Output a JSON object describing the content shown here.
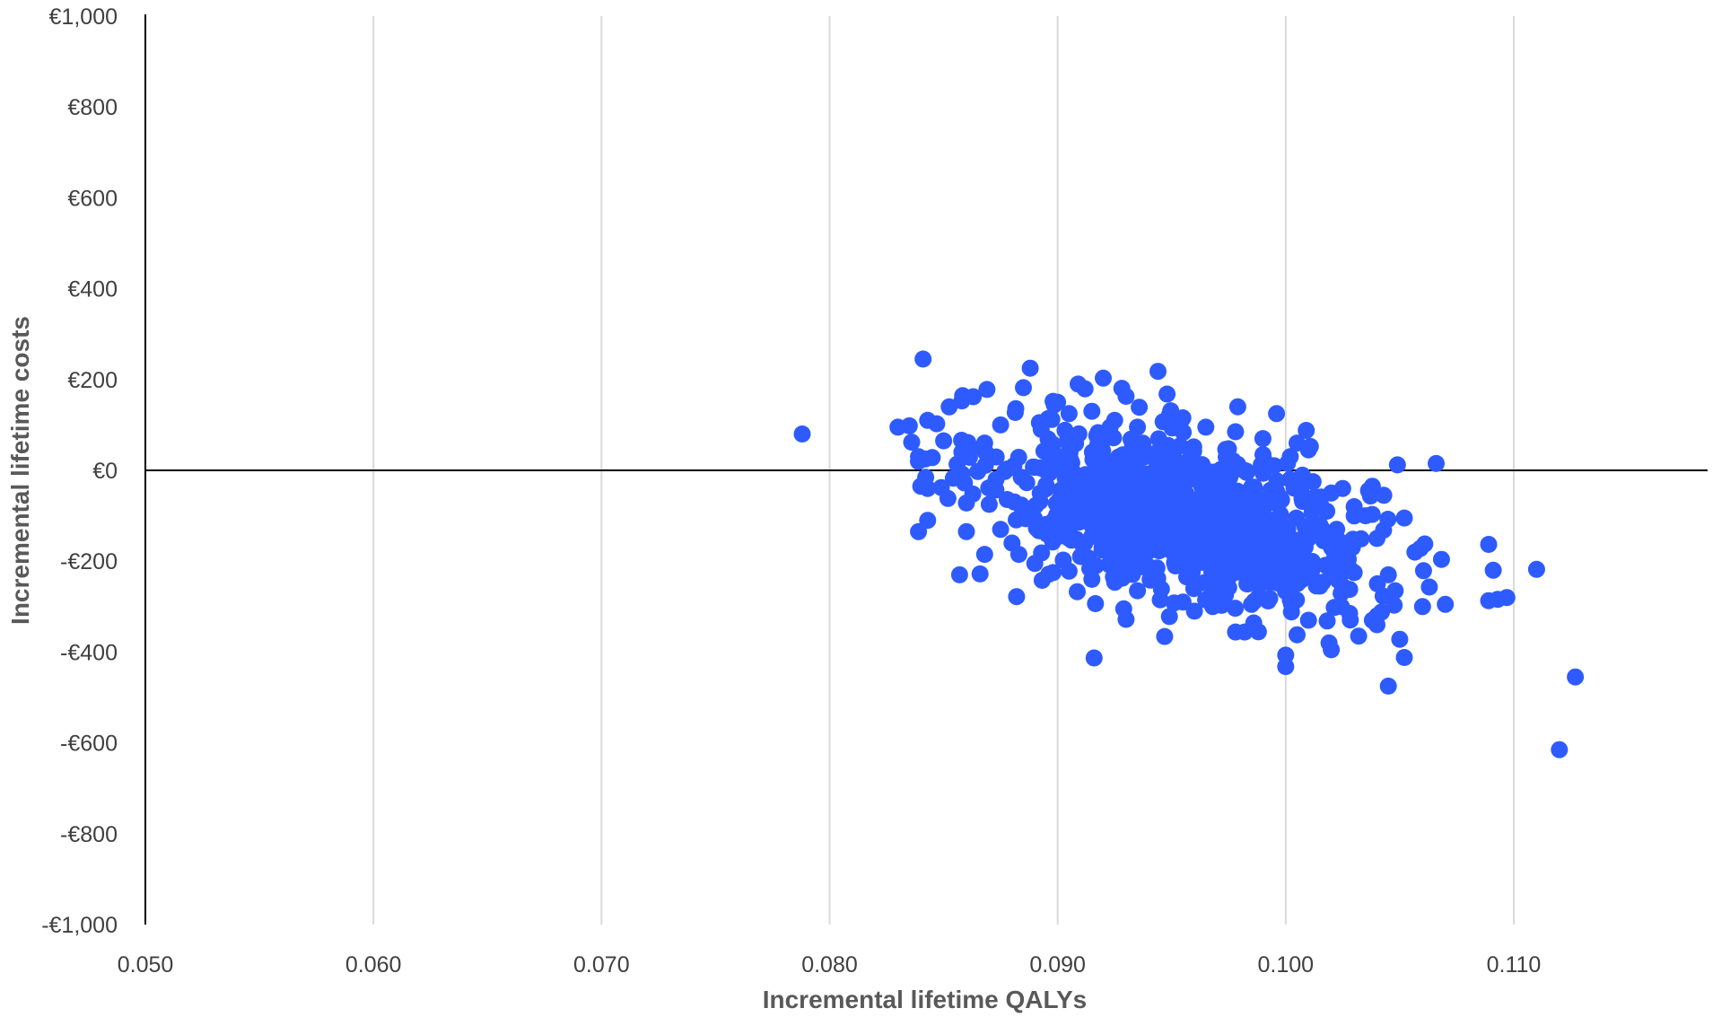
{
  "chart_data": {
    "type": "scatter",
    "xlabel": "Incremental  lifetime QALYs",
    "ylabel": "Incremental lifetime costs",
    "xlim": [
      0.05,
      0.1185
    ],
    "ylim": [
      -1000,
      1000
    ],
    "x_ticks": [
      0.05,
      0.06,
      0.07,
      0.08,
      0.09,
      0.1,
      0.11
    ],
    "x_tick_labels": [
      "0.050",
      "0.060",
      "0.070",
      "0.080",
      "0.090",
      "0.100",
      "0.110"
    ],
    "y_ticks": [
      1000,
      800,
      600,
      400,
      200,
      0,
      -200,
      -400,
      -600,
      -800,
      -1000
    ],
    "y_tick_labels": [
      "€1,000",
      "€800",
      "€600",
      "€400",
      "€200",
      "€0",
      "-€200",
      "-€400",
      "-€600",
      "-€800",
      "-€1,000"
    ],
    "grid": {
      "vertical": true,
      "horizontal": false
    },
    "legend": "none",
    "colors": {
      "points": "#2e5bff",
      "gridlines": "#d9d9d9",
      "axes": "#000000",
      "tick_text": "#404040",
      "axis_title": "#595959"
    },
    "cloud_summary": {
      "center": [
        0.0955,
        -100
      ],
      "sd": [
        0.0047,
        110
      ],
      "correlation": -0.45,
      "n_points": 1000
    },
    "points": [
      [
        0.0788,
        80
      ],
      [
        0.0841,
        245
      ],
      [
        0.0888,
        225
      ],
      [
        0.0944,
        218
      ],
      [
        0.092,
        203
      ],
      [
        0.0909,
        190
      ],
      [
        0.0948,
        168
      ],
      [
        0.093,
        163
      ],
      [
        0.0898,
        152
      ],
      [
        0.09,
        150
      ],
      [
        0.0869,
        178
      ],
      [
        0.0858,
        153
      ],
      [
        0.0885,
        182
      ],
      [
        0.0863,
        162
      ],
      [
        0.0979,
        140
      ],
      [
        0.0996,
        125
      ],
      [
        0.1009,
        88
      ],
      [
        0.083,
        95
      ],
      [
        0.0835,
        98
      ],
      [
        0.0843,
        110
      ],
      [
        0.0836,
        62
      ],
      [
        0.0839,
        30
      ],
      [
        0.0842,
        25
      ],
      [
        0.0845,
        28
      ],
      [
        0.085,
        65
      ],
      [
        0.084,
        -35
      ],
      [
        0.0843,
        -40
      ],
      [
        0.0849,
        -38
      ],
      [
        0.086,
        -72
      ],
      [
        0.0843,
        -110
      ],
      [
        0.0839,
        -135
      ],
      [
        0.086,
        -135
      ],
      [
        0.0857,
        -230
      ],
      [
        0.0866,
        -228
      ],
      [
        0.0868,
        -185
      ],
      [
        0.0882,
        -278
      ],
      [
        0.0916,
        -413
      ],
      [
        0.0929,
        -305
      ],
      [
        0.093,
        -328
      ],
      [
        0.0949,
        -322
      ],
      [
        0.0978,
        -356
      ],
      [
        0.0982,
        -356
      ],
      [
        0.0986,
        -336
      ],
      [
        0.1,
        -407
      ],
      [
        0.1,
        -432
      ],
      [
        0.1005,
        -362
      ],
      [
        0.1019,
        -380
      ],
      [
        0.102,
        -395
      ],
      [
        0.1045,
        -475
      ],
      [
        0.105,
        -372
      ],
      [
        0.1052,
        -412
      ],
      [
        0.104,
        -340
      ],
      [
        0.106,
        -300
      ],
      [
        0.107,
        -295
      ],
      [
        0.1063,
        -257
      ],
      [
        0.1061,
        -162
      ],
      [
        0.1059,
        -172
      ],
      [
        0.1049,
        12
      ],
      [
        0.1066,
        15
      ],
      [
        0.1089,
        -163
      ],
      [
        0.1091,
        -220
      ],
      [
        0.1089,
        -287
      ],
      [
        0.1093,
        -284
      ],
      [
        0.1097,
        -280
      ],
      [
        0.111,
        -218
      ],
      [
        0.1127,
        -455
      ],
      [
        0.112,
        -615
      ],
      [
        0.1052,
        -105
      ],
      [
        0.1043,
        -55
      ],
      [
        0.1038,
        -35
      ],
      [
        0.1025,
        -40
      ],
      [
        0.103,
        -80
      ],
      [
        0.1035,
        -100
      ],
      [
        0.104,
        -150
      ],
      [
        0.1045,
        -230
      ],
      [
        0.1048,
        -265
      ],
      [
        0.103,
        -225
      ],
      [
        0.1025,
        -255
      ],
      [
        0.1015,
        -255
      ],
      [
        0.101,
        -330
      ],
      [
        0.1028,
        -315
      ],
      [
        0.1032,
        -365
      ],
      [
        0.1038,
        -330
      ],
      [
        0.1042,
        -312
      ],
      [
        0.1002,
        -285
      ],
      [
        0.0993,
        -282
      ],
      [
        0.0985,
        -295
      ],
      [
        0.0975,
        -258
      ],
      [
        0.0968,
        -300
      ],
      [
        0.096,
        -310
      ],
      [
        0.0955,
        -290
      ],
      [
        0.0945,
        -285
      ],
      [
        0.0935,
        -265
      ],
      [
        0.0925,
        -245
      ],
      [
        0.0915,
        -240
      ],
      [
        0.0905,
        -222
      ],
      [
        0.0898,
        -225
      ],
      [
        0.089,
        -205
      ],
      [
        0.0883,
        -185
      ],
      [
        0.088,
        -160
      ],
      [
        0.0875,
        -130
      ],
      [
        0.087,
        -75
      ],
      [
        0.0873,
        -20
      ],
      [
        0.0868,
        60
      ],
      [
        0.0862,
        45
      ],
      [
        0.0858,
        40
      ],
      [
        0.0875,
        100
      ],
      [
        0.0892,
        105
      ],
      [
        0.0905,
        125
      ],
      [
        0.0915,
        130
      ],
      [
        0.0925,
        110
      ],
      [
        0.0935,
        95
      ],
      [
        0.0952,
        105
      ],
      [
        0.0965,
        95
      ],
      [
        0.0978,
        85
      ],
      [
        0.099,
        70
      ],
      [
        0.1005,
        60
      ],
      [
        0.101,
        45
      ],
      [
        0.1002,
        30
      ],
      [
        0.0995,
        10
      ],
      [
        0.1012,
        -25
      ],
      [
        0.102,
        -50
      ],
      [
        0.1018,
        -90
      ],
      [
        0.1015,
        -120
      ],
      [
        0.101,
        -150
      ],
      [
        0.1005,
        -175
      ],
      [
        0.1,
        -195
      ],
      [
        0.0997,
        -210
      ],
      [
        0.099,
        -235
      ],
      [
        0.0983,
        -250
      ]
    ]
  }
}
